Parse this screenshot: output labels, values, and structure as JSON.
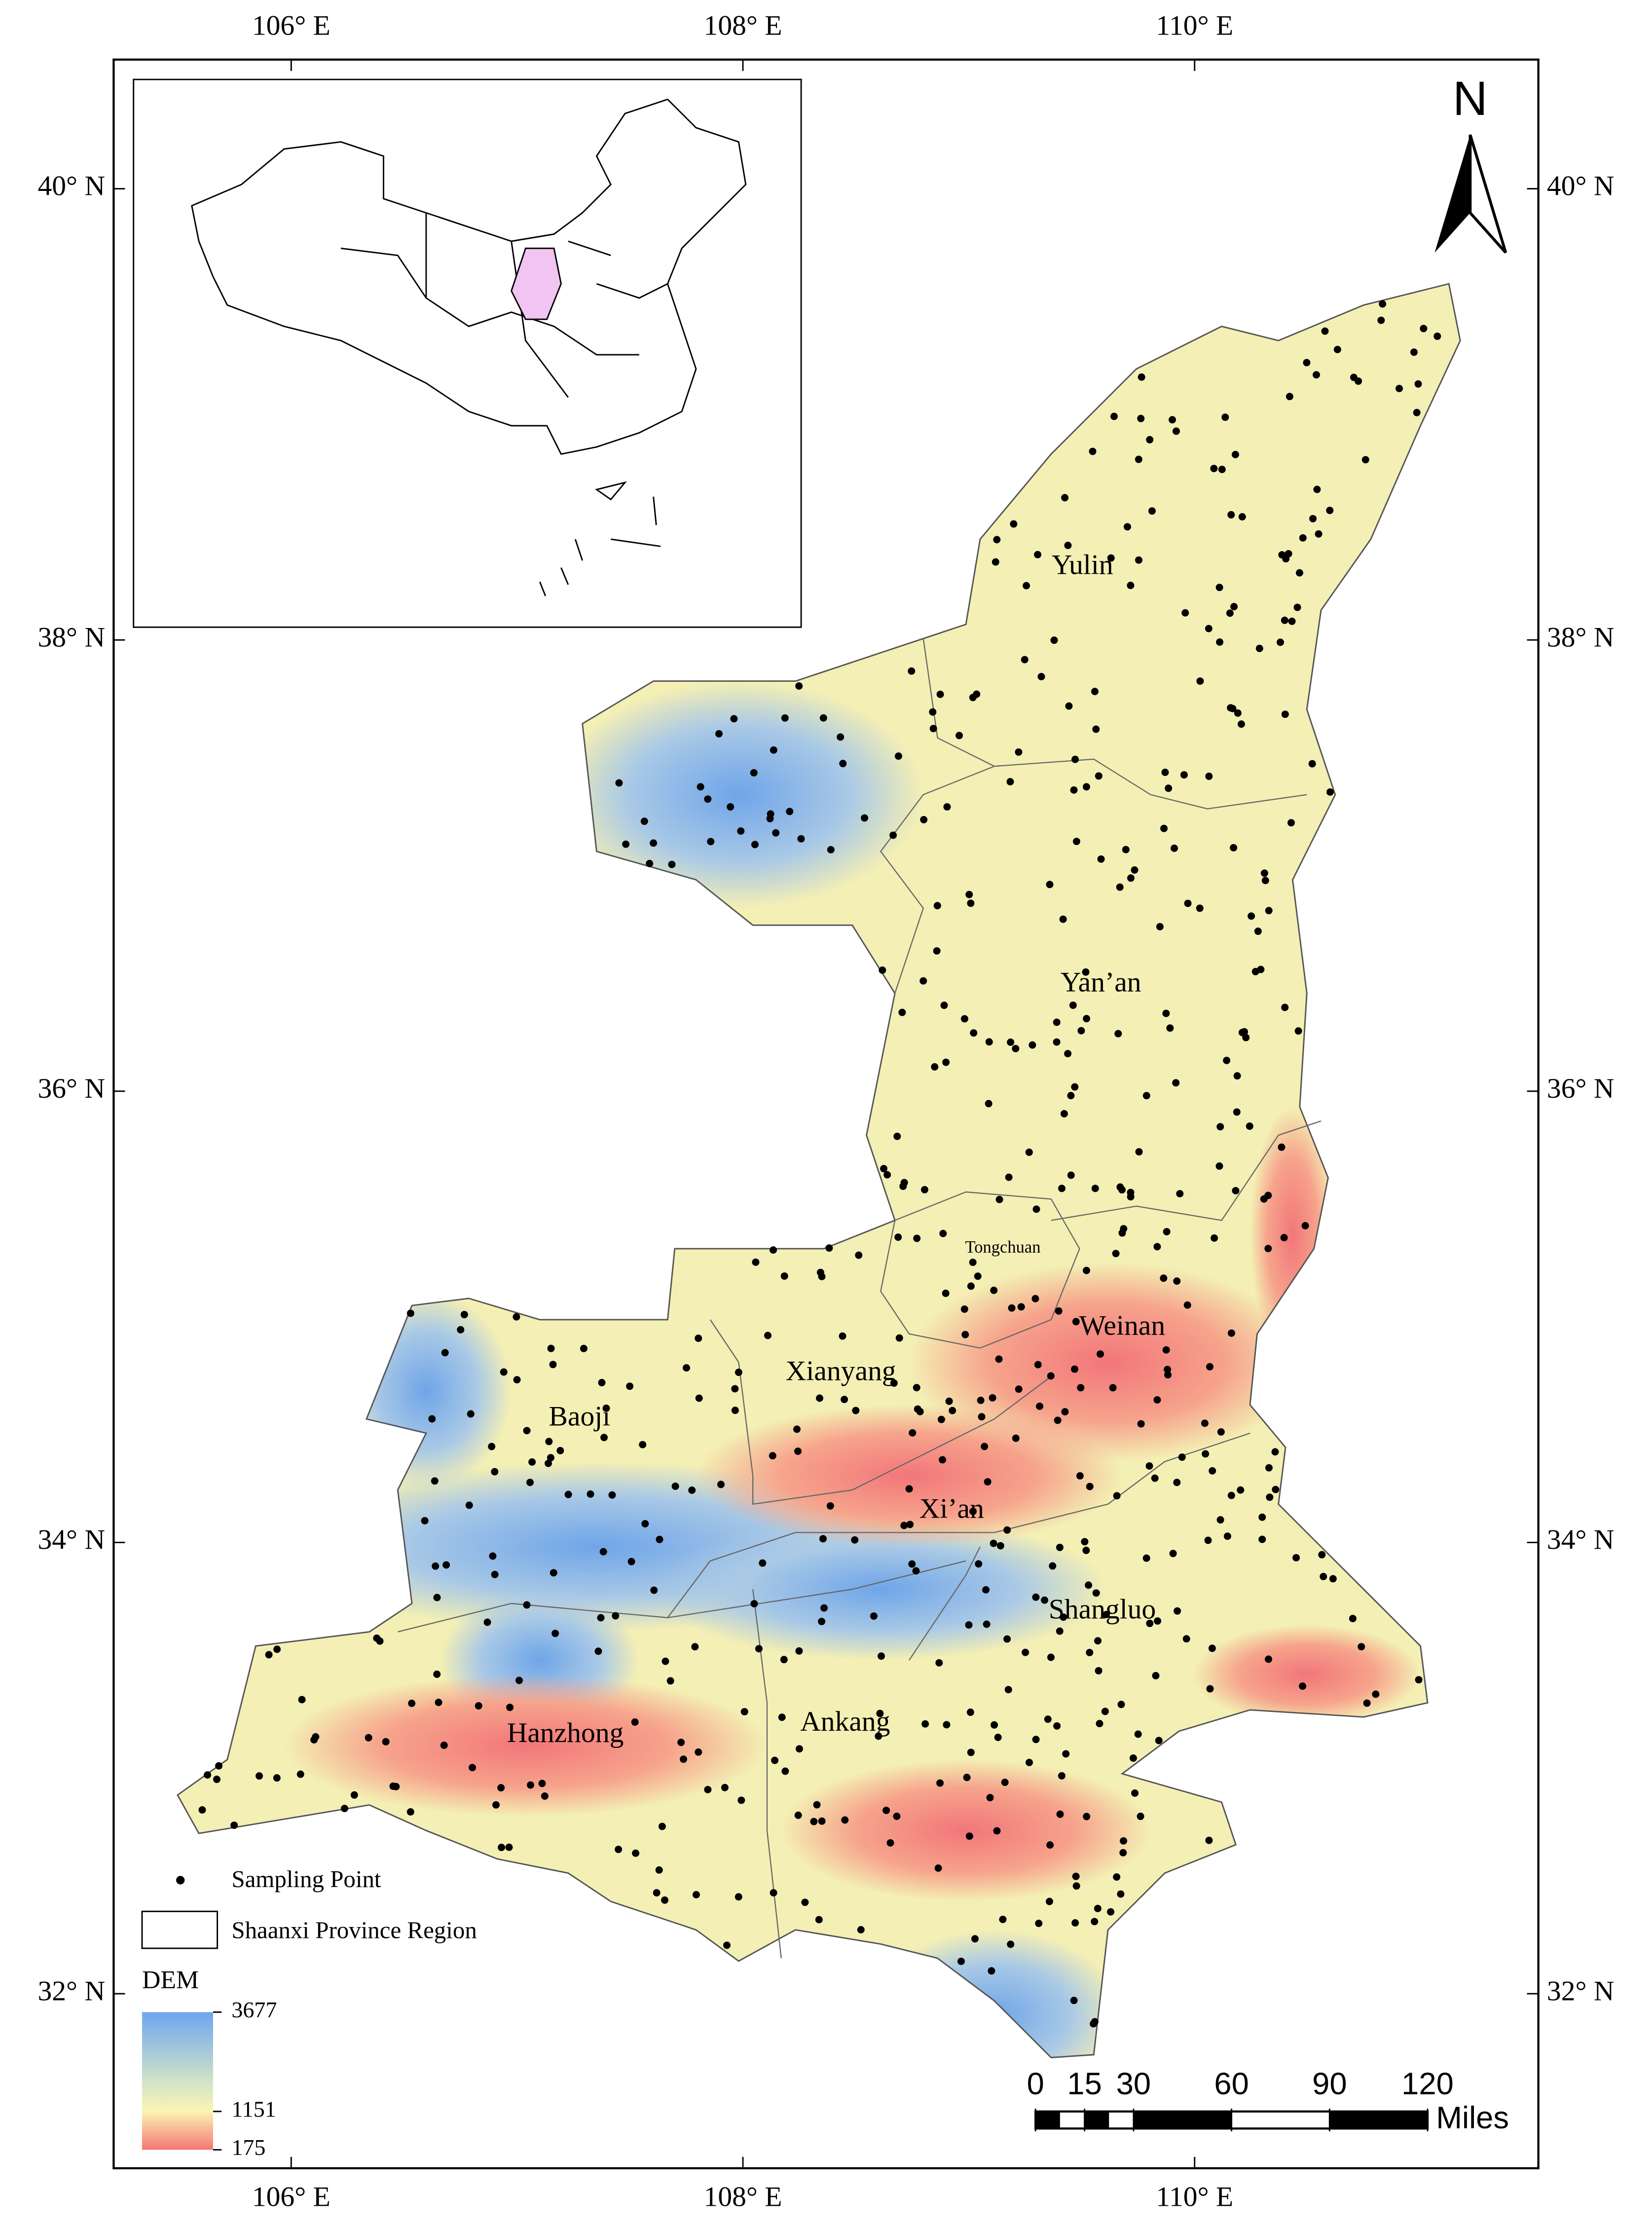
{
  "map": {
    "x_ticks": [
      {
        "value": 106,
        "label": "106° E"
      },
      {
        "value": 108,
        "label": "108° E"
      },
      {
        "value": 110,
        "label": "110° E"
      }
    ],
    "y_ticks": [
      {
        "value": 40,
        "label": "40° N"
      },
      {
        "value": 38,
        "label": "38° N"
      },
      {
        "value": 36,
        "label": "36° N"
      },
      {
        "value": 34,
        "label": "34° N"
      },
      {
        "value": 32,
        "label": "32° N"
      }
    ],
    "regions": [
      "Yulin",
      "Yan’an",
      "Tongchuan",
      "Weinan",
      "Xianyang",
      "Baoji",
      "Xi’an",
      "Shangluo",
      "Hanzhong",
      "Ankang"
    ],
    "legend": {
      "sampling_point": "Sampling Point",
      "region": "Shaanxi Province Region",
      "dem_title": "DEM",
      "dem_ticks": [
        3677,
        1151,
        175
      ]
    },
    "scale_bar": {
      "ticks": [
        0,
        15,
        30,
        60,
        90,
        120
      ],
      "unit": "Miles"
    },
    "north": "N"
  }
}
